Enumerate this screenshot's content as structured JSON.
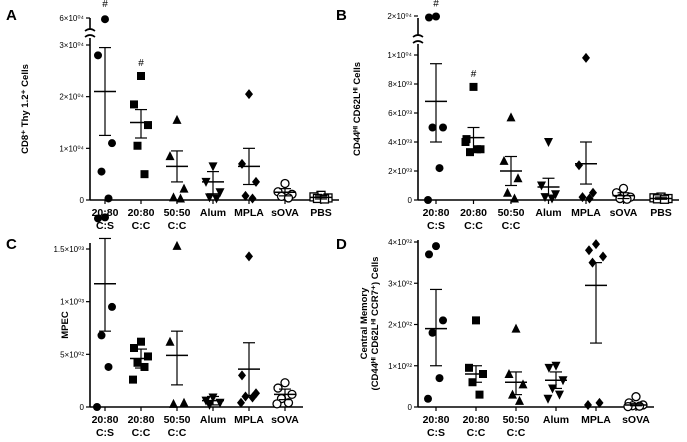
{
  "chart_data": [
    {
      "type": "scatter",
      "panel_label": "A",
      "ylabel": "CD8⁺ Thy 1.2⁺ Cells",
      "categories": [
        {
          "line1": "20:80",
          "line2": "C:S"
        },
        {
          "line1": "20:80",
          "line2": "C:C"
        },
        {
          "line1": "50:50",
          "line2": "C:C"
        },
        {
          "line1": "Alum",
          "line2": ""
        },
        {
          "line1": "MPLA",
          "line2": ""
        },
        {
          "line1": "sOVA",
          "line2": ""
        },
        {
          "line1": "PBS",
          "line2": ""
        }
      ],
      "yticks": [
        {
          "v": 0,
          "label": "0"
        },
        {
          "v": 10000,
          "label": "1×10⁰⁴"
        },
        {
          "v": 20000,
          "label": "2×10⁰⁴"
        },
        {
          "v": 30000,
          "label": "3×10⁰⁴"
        },
        {
          "v": 60000,
          "label": "6×10⁰⁴"
        }
      ],
      "axis_break": true,
      "ylim": [
        0,
        60000
      ],
      "annotations": [
        {
          "category": 0,
          "text": "#"
        },
        {
          "category": 1,
          "text": "#"
        }
      ],
      "groups": [
        {
          "marker": "circle",
          "mean": 21000,
          "sem_low": 12500,
          "sem_high": 29500,
          "points": [
            57000,
            28000,
            11000,
            5500,
            300
          ]
        },
        {
          "marker": "square",
          "mean": 15000,
          "sem_low": 12000,
          "sem_high": 17500,
          "points": [
            24000,
            18500,
            14500,
            10500,
            5000
          ]
        },
        {
          "marker": "triangle",
          "mean": 6500,
          "sem_low": 3500,
          "sem_high": 9500,
          "points": [
            15500,
            8500,
            2200,
            500,
            300
          ]
        },
        {
          "marker": "triangle-down",
          "mean": 3500,
          "sem_low": 1200,
          "sem_high": 5500,
          "points": [
            6500,
            3500,
            1500,
            500,
            300
          ]
        },
        {
          "marker": "diamond",
          "mean": 6500,
          "sem_low": 3000,
          "sem_high": 10000,
          "points": [
            20500,
            7000,
            3500,
            800,
            300
          ]
        },
        {
          "marker": "circle-open",
          "mean": 1500,
          "sem_low": 800,
          "sem_high": 2200,
          "points": [
            3200,
            1600,
            1100,
            700,
            400
          ]
        },
        {
          "marker": "square-open",
          "mean": 500,
          "sem_low": 200,
          "sem_high": 800,
          "points": [
            900,
            600,
            400,
            300,
            200
          ]
        }
      ]
    },
    {
      "type": "scatter",
      "panel_label": "B",
      "ylabel": "CD44ᴴᴵ CD62Lᴴᴵ Cells",
      "categories": [
        {
          "line1": "20:80",
          "line2": "C:S"
        },
        {
          "line1": "20:80",
          "line2": "C:C"
        },
        {
          "line1": "50:50",
          "line2": "C:C"
        },
        {
          "line1": "Alum",
          "line2": ""
        },
        {
          "line1": "MPLA",
          "line2": ""
        },
        {
          "line1": "sOVA",
          "line2": ""
        },
        {
          "line1": "PBS",
          "line2": ""
        }
      ],
      "yticks": [
        {
          "v": 0,
          "label": "0"
        },
        {
          "v": 2000,
          "label": "2×10⁰³"
        },
        {
          "v": 4000,
          "label": "4×10⁰³"
        },
        {
          "v": 6000,
          "label": "6×10⁰³"
        },
        {
          "v": 8000,
          "label": "8×10⁰³"
        },
        {
          "v": 10000,
          "label": "1×10⁰⁴"
        },
        {
          "v": 20000,
          "label": "2×10⁰⁴"
        }
      ],
      "axis_break": true,
      "ylim": [
        0,
        20000
      ],
      "annotations": [
        {
          "category": 0,
          "text": "#"
        },
        {
          "category": 1,
          "text": "#"
        }
      ],
      "groups": [
        {
          "marker": "circle",
          "mean": 6800,
          "sem_low": 4000,
          "sem_high": 9400,
          "points": [
            19500,
            18500,
            5000,
            5000,
            2200,
            0
          ]
        },
        {
          "marker": "square",
          "mean": 4300,
          "sem_low": 3300,
          "sem_high": 5000,
          "points": [
            7800,
            4200,
            3500,
            3300,
            3500,
            4000
          ]
        },
        {
          "marker": "triangle",
          "mean": 2000,
          "sem_low": 1000,
          "sem_high": 3000,
          "points": [
            5700,
            2700,
            1500,
            500,
            100
          ]
        },
        {
          "marker": "triangle-down",
          "mean": 900,
          "sem_low": 300,
          "sem_high": 1500,
          "points": [
            4000,
            1000,
            400,
            200,
            100
          ]
        },
        {
          "marker": "diamond",
          "mean": 2500,
          "sem_low": 1100,
          "sem_high": 4000,
          "points": [
            9800,
            2400,
            500,
            200,
            100
          ]
        },
        {
          "marker": "circle-open",
          "mean": 300,
          "sem_low": 100,
          "sem_high": 500,
          "points": [
            800,
            500,
            200,
            100,
            50
          ]
        },
        {
          "marker": "square-open",
          "mean": 100,
          "sem_low": 50,
          "sem_high": 200,
          "points": [
            200,
            150,
            100,
            80,
            50
          ]
        }
      ]
    },
    {
      "type": "scatter",
      "panel_label": "C",
      "ylabel": "MPEC",
      "categories": [
        {
          "line1": "20:80",
          "line2": "C:S"
        },
        {
          "line1": "20:80",
          "line2": "C:C"
        },
        {
          "line1": "50:50",
          "line2": "C:C"
        },
        {
          "line1": "Alum",
          "line2": ""
        },
        {
          "line1": "MPLA",
          "line2": ""
        },
        {
          "line1": "sOVA",
          "line2": ""
        }
      ],
      "yticks": [
        {
          "v": 0,
          "label": "0"
        },
        {
          "v": 500,
          "label": "5×10⁰²"
        },
        {
          "v": 1000,
          "label": "1×10⁰³"
        },
        {
          "v": 1500,
          "label": "1.5×10⁰³"
        }
      ],
      "axis_break": false,
      "ylim": [
        0,
        1500
      ],
      "annotations": [],
      "groups": [
        {
          "marker": "circle",
          "mean": 1170,
          "sem_low": 720,
          "sem_high": 1600,
          "points": [
            1800,
            1790,
            950,
            680,
            380,
            0
          ]
        },
        {
          "marker": "square",
          "mean": 460,
          "sem_low": 370,
          "sem_high": 550,
          "points": [
            620,
            560,
            480,
            420,
            380,
            260
          ]
        },
        {
          "marker": "triangle",
          "mean": 490,
          "sem_low": 210,
          "sem_high": 720,
          "points": [
            1530,
            620,
            40,
            30
          ]
        },
        {
          "marker": "triangle-down",
          "mean": 60,
          "sem_low": 20,
          "sem_high": 100,
          "points": [
            90,
            60,
            40,
            20
          ]
        },
        {
          "marker": "diamond",
          "mean": 360,
          "sem_low": 110,
          "sem_high": 610,
          "points": [
            1430,
            300,
            130,
            100,
            90,
            40
          ]
        },
        {
          "marker": "circle-open",
          "mean": 120,
          "sem_low": 70,
          "sem_high": 170,
          "points": [
            230,
            180,
            120,
            80,
            40,
            30
          ]
        }
      ]
    },
    {
      "type": "scatter",
      "panel_label": "D",
      "ylabel": "Central Memory\n(CD44ᴴᴵ CD62Lᴴᴵ CCR7⁺) Cells",
      "categories": [
        {
          "line1": "20:80",
          "line2": "C:S"
        },
        {
          "line1": "20:80",
          "line2": "C:C"
        },
        {
          "line1": "50:50",
          "line2": "C:C"
        },
        {
          "line1": "Alum",
          "line2": ""
        },
        {
          "line1": "MPLA",
          "line2": ""
        },
        {
          "line1": "sOVA",
          "line2": ""
        }
      ],
      "yticks": [
        {
          "v": 0,
          "label": "0"
        },
        {
          "v": 100,
          "label": "1×10⁰²"
        },
        {
          "v": 200,
          "label": "2×10⁰²"
        },
        {
          "v": 300,
          "label": "3×10⁰²"
        },
        {
          "v": 400,
          "label": "4×10⁰²"
        }
      ],
      "axis_break": false,
      "ylim": [
        0,
        400
      ],
      "annotations": [],
      "groups": [
        {
          "marker": "circle",
          "mean": 190,
          "sem_low": 100,
          "sem_high": 285,
          "points": [
            390,
            370,
            210,
            180,
            70,
            20
          ]
        },
        {
          "marker": "square",
          "mean": 80,
          "sem_low": 60,
          "sem_high": 100,
          "points": [
            210,
            95,
            80,
            60,
            30
          ]
        },
        {
          "marker": "triangle",
          "mean": 60,
          "sem_low": 30,
          "sem_high": 85,
          "points": [
            190,
            80,
            55,
            30,
            15
          ]
        },
        {
          "marker": "triangle-down",
          "mean": 65,
          "sem_low": 45,
          "sem_high": 85,
          "points": [
            100,
            95,
            65,
            45,
            30,
            20
          ]
        },
        {
          "marker": "diamond",
          "mean": 295,
          "sem_low": 155,
          "sem_high": 350,
          "points": [
            395,
            380,
            365,
            350,
            10,
            5
          ]
        },
        {
          "marker": "circle-open",
          "mean": 5,
          "sem_low": 3,
          "sem_high": 8,
          "points": [
            25,
            10,
            5,
            3,
            2,
            1
          ]
        }
      ]
    }
  ]
}
